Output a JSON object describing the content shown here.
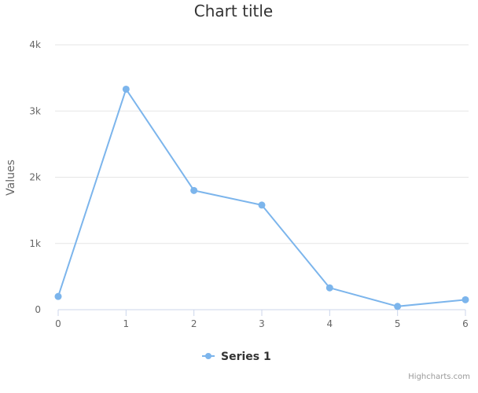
{
  "chart_data": {
    "type": "line",
    "title": "Chart title",
    "xlabel": "",
    "ylabel": "Values",
    "x": [
      0,
      1,
      2,
      3,
      4,
      5,
      6
    ],
    "series": [
      {
        "name": "Series 1",
        "values": [
          200,
          3330,
          1800,
          1580,
          330,
          50,
          150
        ]
      }
    ],
    "xlim": [
      0,
      6
    ],
    "ylim": [
      0,
      4000
    ],
    "x_ticks": [
      "0",
      "1",
      "2",
      "3",
      "4",
      "5",
      "6"
    ],
    "y_ticks": [
      {
        "value": 0,
        "label": "0"
      },
      {
        "value": 1000,
        "label": "1k"
      },
      {
        "value": 2000,
        "label": "2k"
      },
      {
        "value": 3000,
        "label": "3k"
      },
      {
        "value": 4000,
        "label": "4k"
      }
    ],
    "grid": true,
    "legend_position": "bottom-center",
    "colors": {
      "series": "#7cb5ec",
      "grid": "#e6e6e6",
      "axis": "#ccd6eb"
    }
  },
  "credits": "Highcharts.com"
}
